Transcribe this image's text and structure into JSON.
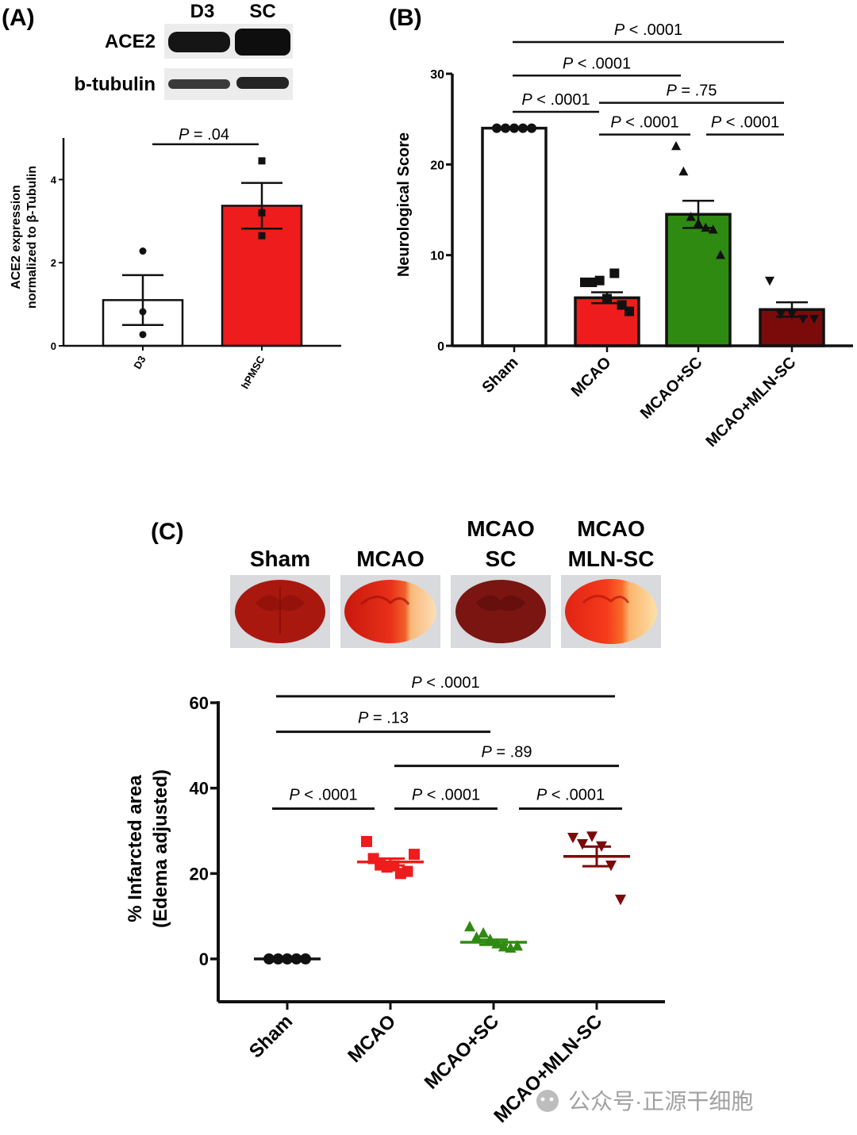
{
  "panel_labels": {
    "a": "(A)",
    "b": "(B)",
    "c": "(C)"
  },
  "blot": {
    "lane_labels": [
      "D3",
      "SC"
    ],
    "row_labels": [
      "ACE2",
      "b-tubulin"
    ]
  },
  "brain_images": [
    {
      "line1": "",
      "line2": "Sham"
    },
    {
      "line1": "",
      "line2": "MCAO"
    },
    {
      "line1": "MCAO",
      "line2": "SC"
    },
    {
      "line1": "MCAO",
      "line2": "MLN-SC"
    }
  ],
  "watermark": "公众号·正源干细胞",
  "colors": {
    "red": "#ee1c1c",
    "green": "#2f8a12",
    "dark_red": "#7b0b0b",
    "black": "#111111"
  },
  "chart_data": [
    {
      "id": "A",
      "type": "bar",
      "categories": [
        "D3",
        "hPMSC"
      ],
      "values": [
        1.1,
        3.37
      ],
      "error": [
        0.6,
        0.55
      ],
      "points": [
        [
          2.28,
          0.82,
          0.27
        ],
        [
          4.45,
          3.2,
          2.65
        ]
      ],
      "ylabel_line1": "ACE2 expression",
      "ylabel_line2_prefix": "normalized to ",
      "ylabel_line2_greek": "β",
      "ylabel_line2_suffix": "-Tubulin",
      "ylim": [
        0,
        5
      ],
      "yticks": [
        "0",
        "2",
        "4"
      ],
      "ytick_values": [
        0,
        2,
        4
      ],
      "comparisons": [
        {
          "from": 0,
          "to": 1,
          "text": "= .04",
          "at": 4.85
        }
      ]
    },
    {
      "id": "B",
      "type": "bar",
      "categories": [
        "Sham",
        "MCAO",
        "MCAO+SC",
        "MCAO+MLN-SC"
      ],
      "values": [
        24,
        5.3,
        14.5,
        4.0
      ],
      "error": [
        0,
        0.6,
        1.5,
        0.8
      ],
      "points": [
        [
          24,
          24,
          24,
          24,
          24
        ],
        [
          7.0,
          7.0,
          7.2,
          5.2,
          8.0,
          4.5,
          3.8
        ],
        [
          22.0,
          19.2,
          14.2,
          13.5,
          13.0,
          12.8,
          10.0
        ],
        [
          7.2,
          3.5,
          3.5,
          3.0,
          3.0
        ]
      ],
      "ylabel": "Neurological Score",
      "ylim": [
        0,
        30
      ],
      "yticks": [
        "0",
        "10",
        "20",
        "30"
      ],
      "ytick_values": [
        0,
        10,
        20,
        30
      ],
      "comparisons": [
        {
          "from": 0,
          "to": 3,
          "text": "< .0001",
          "at": 33.5
        },
        {
          "from": 0,
          "to": 2,
          "text": "< .0001",
          "at": 29.8
        },
        {
          "from": 0,
          "to": 1,
          "text": "< .0001",
          "at": 25.8
        },
        {
          "from": 1,
          "to": 3,
          "text": "= .75",
          "at": 26.8
        },
        {
          "from": 1,
          "to": 2,
          "text": "< .0001",
          "at": 23.3
        },
        {
          "from": 2,
          "to": 3,
          "text": "< .0001",
          "at": 23.3
        }
      ]
    },
    {
      "id": "C",
      "type": "scatter",
      "categories": [
        "Sham",
        "MCAO",
        "MCAO+SC",
        "MCAO+MLN-SC"
      ],
      "means": [
        0,
        22.7,
        3.9,
        24.0
      ],
      "error": [
        0,
        0.8,
        0.6,
        2.3
      ],
      "points": [
        [
          0,
          0,
          0,
          0,
          0
        ],
        [
          27.5,
          23.5,
          22.0,
          21.5,
          21.8,
          20.0,
          20.5,
          24.5
        ],
        [
          7.5,
          5.0,
          6.0,
          4.5,
          3.5,
          2.8,
          2.5,
          3.0
        ],
        [
          28.5,
          27.0,
          28.8,
          26.5,
          22.0,
          14.0
        ]
      ],
      "ylabel_line1": "% Infarcted area",
      "ylabel_line2": "(Edema adjusted)",
      "ylim": [
        -9,
        60
      ],
      "yticks": [
        "0",
        "20",
        "40",
        "60"
      ],
      "ytick_values": [
        0,
        20,
        40,
        60
      ],
      "comparisons": [
        {
          "from": 0,
          "to": 3,
          "text": "< .0001",
          "at": 61.5
        },
        {
          "from": 0,
          "to": 2,
          "text": "= .13",
          "at": 53.2
        },
        {
          "from": 1,
          "to": 3,
          "text": "= .89",
          "at": 45.2
        },
        {
          "from": 0,
          "to": 1,
          "text": "< .0001",
          "at": 35.2
        },
        {
          "from": 1,
          "to": 2,
          "text": "< .0001",
          "at": 35.2
        },
        {
          "from": 2,
          "to": 3,
          "text": "< .0001",
          "at": 35.2
        }
      ]
    }
  ]
}
